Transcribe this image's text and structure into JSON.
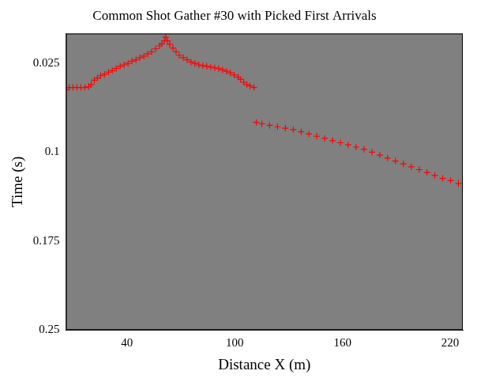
{
  "chart_data": {
    "type": "scatter",
    "title": "Common Shot Gather #30 with Picked First Arrivals",
    "x_label": "Distance X (m)",
    "y_label": "Time (s)",
    "x": [
      6.0,
      7.8,
      9.9,
      12.1,
      14.3,
      16.5,
      18.7,
      20.0,
      21.8,
      23.5,
      25.3,
      27.5,
      29.7,
      31.8,
      34.0,
      36.2,
      38.4,
      40.6,
      42.8,
      45.0,
      47.2,
      49.4,
      51.6,
      53.7,
      55.9,
      58.1,
      59.4,
      60.8,
      61.6,
      62.5,
      63.8,
      65.6,
      67.3,
      69.1,
      71.3,
      73.5,
      75.6,
      77.8,
      80.0,
      82.2,
      84.4,
      86.6,
      88.8,
      91.0,
      93.2,
      95.4,
      97.5,
      99.7,
      101.9,
      103.2,
      105.0,
      106.7,
      108.5,
      110.7,
      112.0,
      115.1,
      119.4,
      123.8,
      128.2,
      132.6,
      137.0,
      141.3,
      145.7,
      150.1,
      154.5,
      158.9,
      163.2,
      167.6,
      172.0,
      176.4,
      180.8,
      185.1,
      189.5,
      193.9,
      198.3,
      202.7,
      207.1,
      211.4,
      215.8,
      220.2,
      224.6
    ],
    "values": [
      0.0473,
      0.0455,
      0.0455,
      0.0455,
      0.0455,
      0.0455,
      0.0448,
      0.043,
      0.0393,
      0.0375,
      0.0356,
      0.0344,
      0.0326,
      0.0313,
      0.0295,
      0.0276,
      0.0264,
      0.0252,
      0.0233,
      0.0221,
      0.0203,
      0.019,
      0.0172,
      0.0154,
      0.0129,
      0.0104,
      0.0086,
      0.0061,
      0.0031,
      0.0061,
      0.0092,
      0.0123,
      0.0154,
      0.0184,
      0.0203,
      0.0221,
      0.024,
      0.0252,
      0.0264,
      0.027,
      0.0276,
      0.0283,
      0.0289,
      0.0295,
      0.0307,
      0.0319,
      0.0332,
      0.035,
      0.0368,
      0.0387,
      0.0411,
      0.043,
      0.0442,
      0.0455,
      0.0749,
      0.0761,
      0.0774,
      0.0786,
      0.0798,
      0.081,
      0.0829,
      0.0847,
      0.0866,
      0.0884,
      0.0903,
      0.0921,
      0.0939,
      0.0958,
      0.0976,
      0.1001,
      0.1025,
      0.105,
      0.1075,
      0.1099,
      0.1124,
      0.1148,
      0.1172,
      0.1197,
      0.1222,
      0.124,
      0.1265
    ],
    "color": "#ff0000",
    "marker": "cross",
    "xlim": [
      6,
      227
    ],
    "ylim": [
      0,
      0.25
    ],
    "xticks": [
      40,
      100,
      160,
      220
    ],
    "yticks": [
      0.025,
      0.1,
      0.175,
      0.25
    ],
    "grid": false
  }
}
